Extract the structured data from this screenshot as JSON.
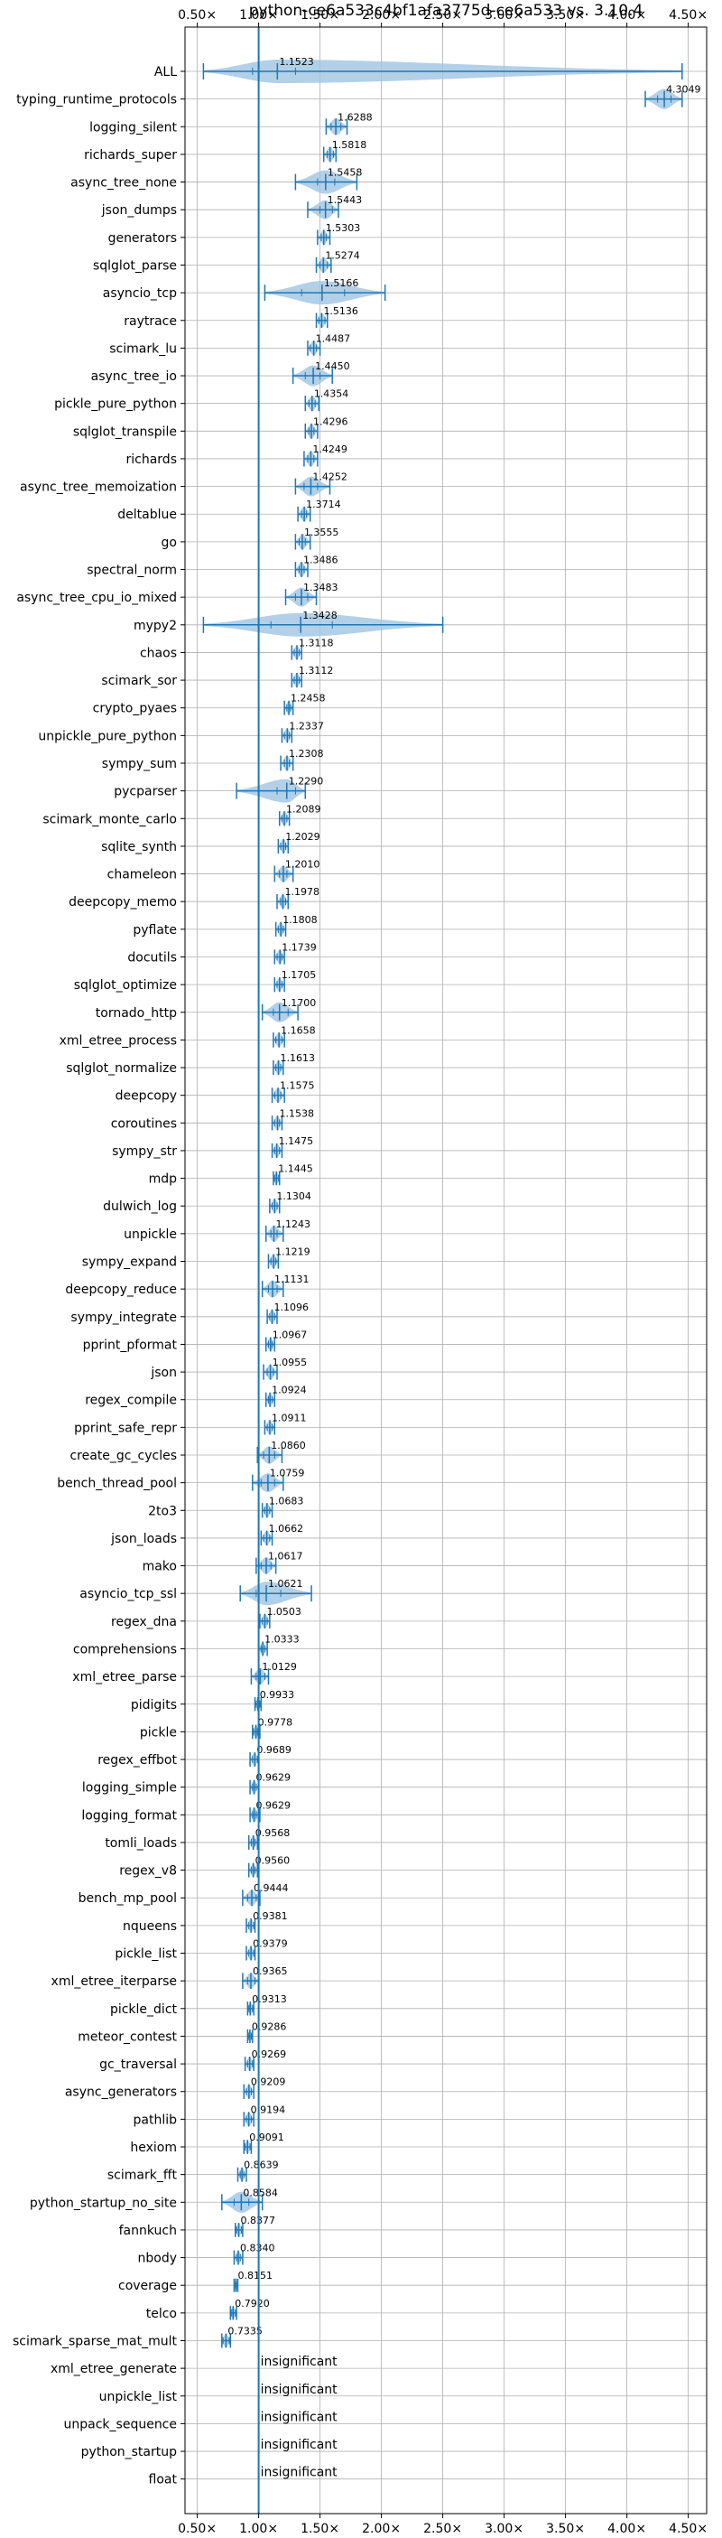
{
  "chart_data": {
    "type": "violin",
    "title": "python-ce6a533c4bf1afa3775d-ce6a533 vs. 3.10.4",
    "xlim": [
      0.4,
      4.65
    ],
    "xticks": [
      0.5,
      1.0,
      1.5,
      2.0,
      2.5,
      3.0,
      3.5,
      4.0,
      4.5
    ],
    "xtick_labels": [
      "0.50×",
      "1.00×",
      "1.50×",
      "2.00×",
      "2.50×",
      "3.00×",
      "3.50×",
      "4.00×",
      "4.50×"
    ],
    "reference_line": 1.0,
    "grid": true,
    "accent_color": "#1f77b4",
    "violin_fill": "#9fc4e2",
    "benchmarks": [
      {
        "name": "ALL",
        "label": "1.1523",
        "value": 1.1523,
        "min": 0.55,
        "max": 4.45,
        "q1": 0.95,
        "q3": 1.3
      },
      {
        "name": "typing_runtime_protocols",
        "label": "4.3049",
        "value": 4.3049,
        "min": 4.15,
        "max": 4.45,
        "q1": 4.25,
        "q3": 4.36
      },
      {
        "name": "logging_silent",
        "label": "1.6288",
        "value": 1.6288,
        "min": 1.55,
        "max": 1.72,
        "q1": 1.59,
        "q3": 1.67
      },
      {
        "name": "richards_super",
        "label": "1.5818",
        "value": 1.5818,
        "min": 1.53,
        "max": 1.63,
        "q1": 1.56,
        "q3": 1.61
      },
      {
        "name": "async_tree_none",
        "label": "1.5458",
        "value": 1.5458,
        "min": 1.3,
        "max": 1.8,
        "q1": 1.48,
        "q3": 1.62
      },
      {
        "name": "json_dumps",
        "label": "1.5443",
        "value": 1.5443,
        "min": 1.4,
        "max": 1.65,
        "q1": 1.5,
        "q3": 1.6
      },
      {
        "name": "generators",
        "label": "1.5303",
        "value": 1.5303,
        "min": 1.48,
        "max": 1.58,
        "q1": 1.51,
        "q3": 1.55
      },
      {
        "name": "sqlglot_parse",
        "label": "1.5274",
        "value": 1.5274,
        "min": 1.47,
        "max": 1.59,
        "q1": 1.5,
        "q3": 1.56
      },
      {
        "name": "asyncio_tcp",
        "label": "1.5166",
        "value": 1.5166,
        "min": 1.05,
        "max": 2.03,
        "q1": 1.35,
        "q3": 1.7
      },
      {
        "name": "raytrace",
        "label": "1.5136",
        "value": 1.5136,
        "min": 1.47,
        "max": 1.56,
        "q1": 1.49,
        "q3": 1.54
      },
      {
        "name": "scimark_lu",
        "label": "1.4487",
        "value": 1.4487,
        "min": 1.4,
        "max": 1.5,
        "q1": 1.42,
        "q3": 1.47
      },
      {
        "name": "async_tree_io",
        "label": "1.4450",
        "value": 1.445,
        "min": 1.28,
        "max": 1.6,
        "q1": 1.38,
        "q3": 1.5
      },
      {
        "name": "pickle_pure_python",
        "label": "1.4354",
        "value": 1.4354,
        "min": 1.38,
        "max": 1.49,
        "q1": 1.41,
        "q3": 1.46
      },
      {
        "name": "sqlglot_transpile",
        "label": "1.4296",
        "value": 1.4296,
        "min": 1.38,
        "max": 1.48,
        "q1": 1.41,
        "q3": 1.45
      },
      {
        "name": "richards",
        "label": "1.4249",
        "value": 1.4249,
        "min": 1.37,
        "max": 1.48,
        "q1": 1.4,
        "q3": 1.45
      },
      {
        "name": "async_tree_memoization",
        "label": "1.4252",
        "value": 1.4252,
        "min": 1.3,
        "max": 1.58,
        "q1": 1.37,
        "q3": 1.48
      },
      {
        "name": "deltablue",
        "label": "1.3714",
        "value": 1.3714,
        "min": 1.32,
        "max": 1.42,
        "q1": 1.35,
        "q3": 1.39
      },
      {
        "name": "go",
        "label": "1.3555",
        "value": 1.3555,
        "min": 1.3,
        "max": 1.42,
        "q1": 1.33,
        "q3": 1.38
      },
      {
        "name": "spectral_norm",
        "label": "1.3486",
        "value": 1.3486,
        "min": 1.3,
        "max": 1.4,
        "q1": 1.33,
        "q3": 1.37
      },
      {
        "name": "async_tree_cpu_io_mixed",
        "label": "1.3483",
        "value": 1.3483,
        "min": 1.22,
        "max": 1.47,
        "q1": 1.3,
        "q3": 1.4
      },
      {
        "name": "mypy2",
        "label": "1.3428",
        "value": 1.3428,
        "min": 0.55,
        "max": 2.5,
        "q1": 1.1,
        "q3": 1.6
      },
      {
        "name": "chaos",
        "label": "1.3118",
        "value": 1.3118,
        "min": 1.27,
        "max": 1.35,
        "q1": 1.29,
        "q3": 1.33
      },
      {
        "name": "scimark_sor",
        "label": "1.3112",
        "value": 1.3112,
        "min": 1.27,
        "max": 1.35,
        "q1": 1.29,
        "q3": 1.33
      },
      {
        "name": "crypto_pyaes",
        "label": "1.2458",
        "value": 1.2458,
        "min": 1.21,
        "max": 1.28,
        "q1": 1.23,
        "q3": 1.26
      },
      {
        "name": "unpickle_pure_python",
        "label": "1.2337",
        "value": 1.2337,
        "min": 1.19,
        "max": 1.27,
        "q1": 1.21,
        "q3": 1.25
      },
      {
        "name": "sympy_sum",
        "label": "1.2308",
        "value": 1.2308,
        "min": 1.18,
        "max": 1.28,
        "q1": 1.21,
        "q3": 1.25
      },
      {
        "name": "pycparser",
        "label": "1.2290",
        "value": 1.229,
        "min": 0.82,
        "max": 1.38,
        "q1": 1.15,
        "q3": 1.3
      },
      {
        "name": "scimark_monte_carlo",
        "label": "1.2089",
        "value": 1.2089,
        "min": 1.17,
        "max": 1.25,
        "q1": 1.19,
        "q3": 1.23
      },
      {
        "name": "sqlite_synth",
        "label": "1.2029",
        "value": 1.2029,
        "min": 1.16,
        "max": 1.24,
        "q1": 1.18,
        "q3": 1.22
      },
      {
        "name": "chameleon",
        "label": "1.2010",
        "value": 1.201,
        "min": 1.13,
        "max": 1.28,
        "q1": 1.17,
        "q3": 1.23
      },
      {
        "name": "deepcopy_memo",
        "label": "1.1978",
        "value": 1.1978,
        "min": 1.15,
        "max": 1.24,
        "q1": 1.18,
        "q3": 1.22
      },
      {
        "name": "pyflate",
        "label": "1.1808",
        "value": 1.1808,
        "min": 1.14,
        "max": 1.22,
        "q1": 1.16,
        "q3": 1.2
      },
      {
        "name": "docutils",
        "label": "1.1739",
        "value": 1.1739,
        "min": 1.13,
        "max": 1.21,
        "q1": 1.15,
        "q3": 1.19
      },
      {
        "name": "sqlglot_optimize",
        "label": "1.1705",
        "value": 1.1705,
        "min": 1.13,
        "max": 1.21,
        "q1": 1.15,
        "q3": 1.19
      },
      {
        "name": "tornado_http",
        "label": "1.1700",
        "value": 1.17,
        "min": 1.03,
        "max": 1.32,
        "q1": 1.12,
        "q3": 1.24
      },
      {
        "name": "xml_etree_process",
        "label": "1.1658",
        "value": 1.1658,
        "min": 1.12,
        "max": 1.21,
        "q1": 1.14,
        "q3": 1.19
      },
      {
        "name": "sqlglot_normalize",
        "label": "1.1613",
        "value": 1.1613,
        "min": 1.12,
        "max": 1.2,
        "q1": 1.14,
        "q3": 1.18
      },
      {
        "name": "deepcopy",
        "label": "1.1575",
        "value": 1.1575,
        "min": 1.11,
        "max": 1.21,
        "q1": 1.13,
        "q3": 1.18
      },
      {
        "name": "coroutines",
        "label": "1.1538",
        "value": 1.1538,
        "min": 1.11,
        "max": 1.19,
        "q1": 1.13,
        "q3": 1.17
      },
      {
        "name": "sympy_str",
        "label": "1.1475",
        "value": 1.1475,
        "min": 1.11,
        "max": 1.19,
        "q1": 1.13,
        "q3": 1.17
      },
      {
        "name": "mdp",
        "label": "1.1445",
        "value": 1.1445,
        "min": 1.12,
        "max": 1.17,
        "q1": 1.13,
        "q3": 1.16
      },
      {
        "name": "dulwich_log",
        "label": "1.1304",
        "value": 1.1304,
        "min": 1.09,
        "max": 1.17,
        "q1": 1.11,
        "q3": 1.15
      },
      {
        "name": "unpickle",
        "label": "1.1243",
        "value": 1.1243,
        "min": 1.06,
        "max": 1.2,
        "q1": 1.1,
        "q3": 1.15
      },
      {
        "name": "sympy_expand",
        "label": "1.1219",
        "value": 1.1219,
        "min": 1.08,
        "max": 1.16,
        "q1": 1.1,
        "q3": 1.14
      },
      {
        "name": "deepcopy_reduce",
        "label": "1.1131",
        "value": 1.1131,
        "min": 1.03,
        "max": 1.2,
        "q1": 1.08,
        "q3": 1.15
      },
      {
        "name": "sympy_integrate",
        "label": "1.1096",
        "value": 1.1096,
        "min": 1.07,
        "max": 1.15,
        "q1": 1.09,
        "q3": 1.13
      },
      {
        "name": "pprint_pformat",
        "label": "1.0967",
        "value": 1.0967,
        "min": 1.06,
        "max": 1.13,
        "q1": 1.08,
        "q3": 1.11
      },
      {
        "name": "json",
        "label": "1.0955",
        "value": 1.0955,
        "min": 1.04,
        "max": 1.15,
        "q1": 1.07,
        "q3": 1.12
      },
      {
        "name": "regex_compile",
        "label": "1.0924",
        "value": 1.0924,
        "min": 1.06,
        "max": 1.13,
        "q1": 1.08,
        "q3": 1.11
      },
      {
        "name": "pprint_safe_repr",
        "label": "1.0911",
        "value": 1.0911,
        "min": 1.05,
        "max": 1.13,
        "q1": 1.07,
        "q3": 1.11
      },
      {
        "name": "create_gc_cycles",
        "label": "1.0860",
        "value": 1.086,
        "min": 0.99,
        "max": 1.19,
        "q1": 1.04,
        "q3": 1.13
      },
      {
        "name": "bench_thread_pool",
        "label": "1.0759",
        "value": 1.0759,
        "min": 0.95,
        "max": 1.2,
        "q1": 1.02,
        "q3": 1.13
      },
      {
        "name": "2to3",
        "label": "1.0683",
        "value": 1.0683,
        "min": 1.03,
        "max": 1.11,
        "q1": 1.05,
        "q3": 1.09
      },
      {
        "name": "json_loads",
        "label": "1.0662",
        "value": 1.0662,
        "min": 1.02,
        "max": 1.11,
        "q1": 1.04,
        "q3": 1.09
      },
      {
        "name": "mako",
        "label": "1.0617",
        "value": 1.0617,
        "min": 0.98,
        "max": 1.14,
        "q1": 1.02,
        "q3": 1.1
      },
      {
        "name": "asyncio_tcp_ssl",
        "label": "1.0621",
        "value": 1.0621,
        "min": 0.85,
        "max": 1.43,
        "q1": 0.98,
        "q3": 1.18
      },
      {
        "name": "regex_dna",
        "label": "1.0503",
        "value": 1.0503,
        "min": 1.01,
        "max": 1.09,
        "q1": 1.03,
        "q3": 1.07
      },
      {
        "name": "comprehensions",
        "label": "1.0333",
        "value": 1.0333,
        "min": 1.0,
        "max": 1.07,
        "q1": 1.02,
        "q3": 1.05
      },
      {
        "name": "xml_etree_parse",
        "label": "1.0129",
        "value": 1.0129,
        "min": 0.94,
        "max": 1.08,
        "q1": 0.98,
        "q3": 1.05
      },
      {
        "name": "pidigits",
        "label": "0.9933",
        "value": 0.9933,
        "min": 0.97,
        "max": 1.02,
        "q1": 0.98,
        "q3": 1.01
      },
      {
        "name": "pickle",
        "label": "0.9778",
        "value": 0.9778,
        "min": 0.95,
        "max": 1.01,
        "q1": 0.96,
        "q3": 0.99
      },
      {
        "name": "regex_effbot",
        "label": "0.9689",
        "value": 0.9689,
        "min": 0.93,
        "max": 1.0,
        "q1": 0.95,
        "q3": 0.99
      },
      {
        "name": "logging_simple",
        "label": "0.9629",
        "value": 0.9629,
        "min": 0.93,
        "max": 1.0,
        "q1": 0.95,
        "q3": 0.98
      },
      {
        "name": "logging_format",
        "label": "0.9629",
        "value": 0.9629,
        "min": 0.93,
        "max": 1.01,
        "q1": 0.95,
        "q3": 0.98
      },
      {
        "name": "tomli_loads",
        "label": "0.9568",
        "value": 0.9568,
        "min": 0.92,
        "max": 0.99,
        "q1": 0.94,
        "q3": 0.97
      },
      {
        "name": "regex_v8",
        "label": "0.9560",
        "value": 0.956,
        "min": 0.92,
        "max": 0.99,
        "q1": 0.94,
        "q3": 0.97
      },
      {
        "name": "bench_mp_pool",
        "label": "0.9444",
        "value": 0.9444,
        "min": 0.87,
        "max": 1.01,
        "q1": 0.91,
        "q3": 0.98
      },
      {
        "name": "nqueens",
        "label": "0.9381",
        "value": 0.9381,
        "min": 0.9,
        "max": 0.97,
        "q1": 0.92,
        "q3": 0.96
      },
      {
        "name": "pickle_list",
        "label": "0.9379",
        "value": 0.9379,
        "min": 0.9,
        "max": 0.97,
        "q1": 0.92,
        "q3": 0.96
      },
      {
        "name": "xml_etree_iterparse",
        "label": "0.9365",
        "value": 0.9365,
        "min": 0.87,
        "max": 1.0,
        "q1": 0.91,
        "q3": 0.97
      },
      {
        "name": "pickle_dict",
        "label": "0.9313",
        "value": 0.9313,
        "min": 0.91,
        "max": 0.96,
        "q1": 0.92,
        "q3": 0.95
      },
      {
        "name": "meteor_contest",
        "label": "0.9286",
        "value": 0.9286,
        "min": 0.91,
        "max": 0.95,
        "q1": 0.92,
        "q3": 0.94
      },
      {
        "name": "gc_traversal",
        "label": "0.9269",
        "value": 0.9269,
        "min": 0.89,
        "max": 0.96,
        "q1": 0.91,
        "q3": 0.95
      },
      {
        "name": "async_generators",
        "label": "0.9209",
        "value": 0.9209,
        "min": 0.88,
        "max": 0.96,
        "q1": 0.9,
        "q3": 0.94
      },
      {
        "name": "pathlib",
        "label": "0.9194",
        "value": 0.9194,
        "min": 0.88,
        "max": 0.96,
        "q1": 0.9,
        "q3": 0.94
      },
      {
        "name": "hexiom",
        "label": "0.9091",
        "value": 0.9091,
        "min": 0.88,
        "max": 0.94,
        "q1": 0.89,
        "q3": 0.93
      },
      {
        "name": "scimark_fft",
        "label": "0.8639",
        "value": 0.8639,
        "min": 0.83,
        "max": 0.9,
        "q1": 0.85,
        "q3": 0.88
      },
      {
        "name": "python_startup_no_site",
        "label": "0.8584",
        "value": 0.8584,
        "min": 0.7,
        "max": 1.03,
        "q1": 0.8,
        "q3": 0.92
      },
      {
        "name": "fannkuch",
        "label": "0.8377",
        "value": 0.8377,
        "min": 0.81,
        "max": 0.87,
        "q1": 0.82,
        "q3": 0.86
      },
      {
        "name": "nbody",
        "label": "0.8340",
        "value": 0.834,
        "min": 0.8,
        "max": 0.87,
        "q1": 0.82,
        "q3": 0.85
      },
      {
        "name": "coverage",
        "label": "0.8151",
        "value": 0.8151,
        "min": 0.8,
        "max": 0.83,
        "q1": 0.81,
        "q3": 0.82
      },
      {
        "name": "telco",
        "label": "0.7920",
        "value": 0.792,
        "min": 0.77,
        "max": 0.82,
        "q1": 0.78,
        "q3": 0.81
      },
      {
        "name": "scimark_sparse_mat_mult",
        "label": "0.7335",
        "value": 0.7335,
        "min": 0.7,
        "max": 0.77,
        "q1": 0.71,
        "q3": 0.76
      },
      {
        "name": "xml_etree_generate",
        "label": "insignificant",
        "value": null
      },
      {
        "name": "unpickle_list",
        "label": "insignificant",
        "value": null
      },
      {
        "name": "unpack_sequence",
        "label": "insignificant",
        "value": null
      },
      {
        "name": "python_startup",
        "label": "insignificant",
        "value": null
      },
      {
        "name": "float",
        "label": "insignificant",
        "value": null
      }
    ]
  }
}
